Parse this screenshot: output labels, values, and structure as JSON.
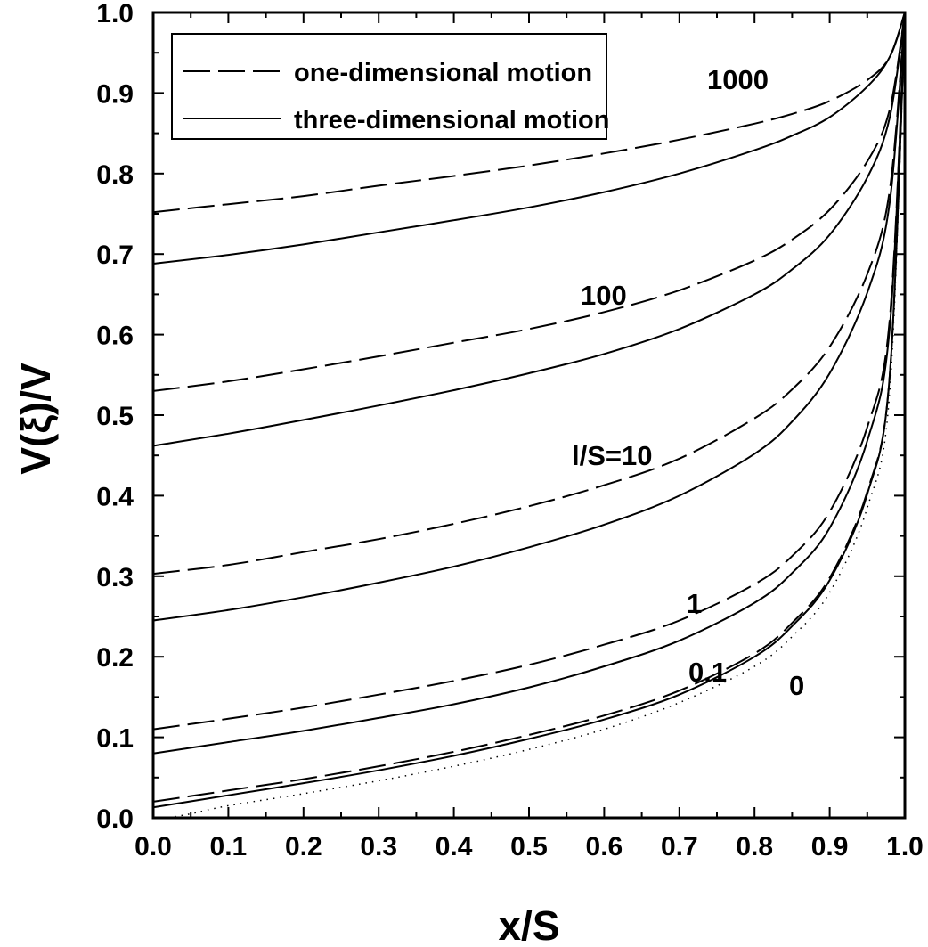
{
  "chart_data": {
    "type": "line",
    "xlabel": "x/S",
    "ylabel": "V(ξ)/V",
    "xlim": [
      0.0,
      1.0
    ],
    "ylim": [
      0.0,
      1.0
    ],
    "xticks": [
      "0.0",
      "0.1",
      "0.2",
      "0.3",
      "0.4",
      "0.5",
      "0.6",
      "0.7",
      "0.8",
      "0.9",
      "1.0"
    ],
    "yticks": [
      "0.0",
      "0.1",
      "0.2",
      "0.3",
      "0.4",
      "0.5",
      "0.6",
      "0.7",
      "0.8",
      "0.9",
      "1.0"
    ],
    "grid": false,
    "legend": {
      "position": "top-left",
      "entries": [
        {
          "label": "one-dimensional motion",
          "style": "dashed"
        },
        {
          "label": "three-dimensional motion",
          "style": "solid"
        }
      ]
    },
    "annotations": [
      "1000",
      "100",
      "l/S=10",
      "1",
      "0.1",
      "0"
    ],
    "series": [
      {
        "style": "dashed",
        "param": "1000",
        "x": [
          0,
          0.1,
          0.2,
          0.3,
          0.4,
          0.5,
          0.6,
          0.7,
          0.8,
          0.85,
          0.9,
          0.95,
          0.98,
          1.0
        ],
        "y": [
          0.752,
          0.762,
          0.772,
          0.785,
          0.797,
          0.81,
          0.825,
          0.842,
          0.862,
          0.874,
          0.89,
          0.916,
          0.945,
          1.0
        ]
      },
      {
        "style": "solid",
        "param": "1000",
        "x": [
          0,
          0.1,
          0.2,
          0.3,
          0.4,
          0.5,
          0.6,
          0.7,
          0.8,
          0.85,
          0.9,
          0.95,
          0.98,
          1.0
        ],
        "y": [
          0.688,
          0.699,
          0.712,
          0.727,
          0.742,
          0.758,
          0.777,
          0.8,
          0.829,
          0.847,
          0.87,
          0.908,
          0.945,
          1.0
        ]
      },
      {
        "style": "dashed",
        "param": "100",
        "x": [
          0,
          0.1,
          0.2,
          0.3,
          0.4,
          0.5,
          0.6,
          0.7,
          0.8,
          0.85,
          0.9,
          0.95,
          0.98,
          1.0
        ],
        "y": [
          0.53,
          0.542,
          0.557,
          0.573,
          0.59,
          0.607,
          0.628,
          0.655,
          0.692,
          0.718,
          0.755,
          0.815,
          0.88,
          1.0
        ]
      },
      {
        "style": "solid",
        "param": "100",
        "x": [
          0,
          0.1,
          0.2,
          0.3,
          0.4,
          0.5,
          0.6,
          0.7,
          0.8,
          0.85,
          0.9,
          0.95,
          0.98,
          1.0
        ],
        "y": [
          0.462,
          0.477,
          0.494,
          0.512,
          0.531,
          0.552,
          0.576,
          0.607,
          0.65,
          0.681,
          0.724,
          0.795,
          0.87,
          1.0
        ]
      },
      {
        "style": "dashed",
        "param": "10",
        "x": [
          0,
          0.1,
          0.2,
          0.3,
          0.4,
          0.5,
          0.6,
          0.7,
          0.8,
          0.85,
          0.9,
          0.95,
          0.98,
          1.0
        ],
        "y": [
          0.303,
          0.314,
          0.33,
          0.346,
          0.365,
          0.387,
          0.413,
          0.446,
          0.496,
          0.532,
          0.585,
          0.675,
          0.78,
          1.0
        ]
      },
      {
        "style": "solid",
        "param": "10",
        "x": [
          0,
          0.1,
          0.2,
          0.3,
          0.4,
          0.5,
          0.6,
          0.7,
          0.8,
          0.85,
          0.9,
          0.95,
          0.98,
          1.0
        ],
        "y": [
          0.245,
          0.258,
          0.274,
          0.292,
          0.312,
          0.336,
          0.364,
          0.4,
          0.452,
          0.492,
          0.552,
          0.652,
          0.765,
          1.0
        ]
      },
      {
        "style": "dashed",
        "param": "1",
        "x": [
          0,
          0.1,
          0.2,
          0.3,
          0.4,
          0.5,
          0.6,
          0.7,
          0.8,
          0.85,
          0.9,
          0.95,
          0.98,
          1.0
        ],
        "y": [
          0.11,
          0.123,
          0.137,
          0.153,
          0.17,
          0.19,
          0.215,
          0.245,
          0.29,
          0.325,
          0.38,
          0.485,
          0.62,
          1.0
        ]
      },
      {
        "style": "solid",
        "param": "1",
        "x": [
          0,
          0.1,
          0.2,
          0.3,
          0.4,
          0.5,
          0.6,
          0.7,
          0.8,
          0.85,
          0.9,
          0.95,
          0.98,
          1.0
        ],
        "y": [
          0.08,
          0.094,
          0.108,
          0.124,
          0.141,
          0.162,
          0.188,
          0.22,
          0.267,
          0.304,
          0.36,
          0.468,
          0.61,
          1.0
        ]
      },
      {
        "style": "dashed",
        "param": "0.1",
        "x": [
          0,
          0.1,
          0.2,
          0.3,
          0.4,
          0.5,
          0.6,
          0.7,
          0.8,
          0.85,
          0.9,
          0.95,
          0.98,
          1.0
        ],
        "y": [
          0.02,
          0.034,
          0.048,
          0.064,
          0.082,
          0.103,
          0.127,
          0.158,
          0.204,
          0.242,
          0.298,
          0.405,
          0.55,
          1.0
        ]
      },
      {
        "style": "solid",
        "param": "0.1",
        "x": [
          0,
          0.1,
          0.2,
          0.3,
          0.4,
          0.5,
          0.6,
          0.7,
          0.8,
          0.85,
          0.9,
          0.95,
          0.98,
          1.0
        ],
        "y": [
          0.013,
          0.028,
          0.043,
          0.059,
          0.077,
          0.098,
          0.122,
          0.153,
          0.2,
          0.238,
          0.295,
          0.402,
          0.55,
          1.0
        ]
      },
      {
        "style": "dotted",
        "param": "0",
        "x": [
          0.02,
          0.05,
          0.1,
          0.2,
          0.3,
          0.4,
          0.5,
          0.6,
          0.7,
          0.8,
          0.85,
          0.9,
          0.95,
          0.98,
          1.0
        ],
        "y": [
          0.0,
          0.005,
          0.015,
          0.03,
          0.046,
          0.064,
          0.085,
          0.11,
          0.143,
          0.188,
          0.225,
          0.28,
          0.385,
          0.53,
          1.0
        ]
      }
    ]
  }
}
